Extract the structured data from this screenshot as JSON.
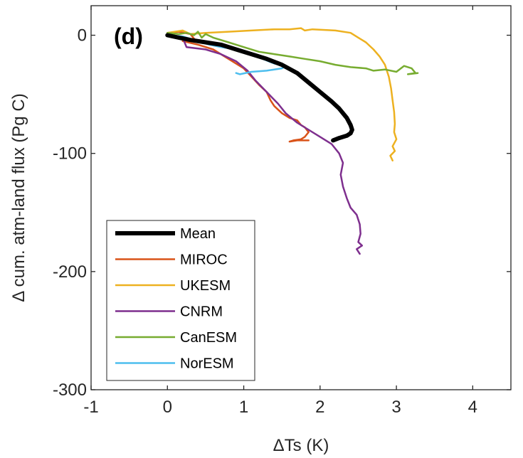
{
  "chart_data": {
    "type": "line",
    "panel_label": "(d)",
    "xlabel": "ΔTs (K)",
    "ylabel": "Δ cum. atm-land flux (Pg C)",
    "xlim": [
      -1,
      4.5
    ],
    "ylim": [
      -300,
      25
    ],
    "xticks": [
      -1,
      0,
      1,
      2,
      3,
      4
    ],
    "xtick_labels": [
      "-1",
      "0",
      "1",
      "2",
      "3",
      "4"
    ],
    "yticks": [
      0,
      -100,
      -200,
      -300
    ],
    "ytick_labels": [
      "0",
      "-100",
      "-200",
      "-300"
    ],
    "grid": false,
    "legend_position": "bottom-left",
    "series": [
      {
        "name": "Mean",
        "color": "#000000",
        "width": 6,
        "points": [
          [
            0.0,
            0
          ],
          [
            0.15,
            -2
          ],
          [
            0.3,
            -4
          ],
          [
            0.5,
            -6
          ],
          [
            0.7,
            -8
          ],
          [
            0.9,
            -12
          ],
          [
            1.1,
            -16
          ],
          [
            1.3,
            -20
          ],
          [
            1.5,
            -25
          ],
          [
            1.7,
            -32
          ],
          [
            1.85,
            -40
          ],
          [
            2.0,
            -48
          ],
          [
            2.15,
            -56
          ],
          [
            2.25,
            -62
          ],
          [
            2.35,
            -70
          ],
          [
            2.4,
            -76
          ],
          [
            2.42,
            -80
          ],
          [
            2.4,
            -83
          ],
          [
            2.35,
            -85
          ],
          [
            2.25,
            -87
          ],
          [
            2.17,
            -89
          ]
        ]
      },
      {
        "name": "MIROC",
        "color": "#D95319",
        "width": 2.5,
        "points": [
          [
            0.0,
            2
          ],
          [
            0.15,
            3
          ],
          [
            0.3,
            1
          ],
          [
            0.35,
            -3
          ],
          [
            0.2,
            -5
          ],
          [
            0.4,
            -8
          ],
          [
            0.6,
            -12
          ],
          [
            0.8,
            -20
          ],
          [
            1.0,
            -28
          ],
          [
            1.1,
            -35
          ],
          [
            1.2,
            -42
          ],
          [
            1.3,
            -48
          ],
          [
            1.35,
            -55
          ],
          [
            1.4,
            -60
          ],
          [
            1.5,
            -66
          ],
          [
            1.6,
            -70
          ],
          [
            1.7,
            -72
          ],
          [
            1.75,
            -76
          ],
          [
            1.8,
            -78
          ],
          [
            1.85,
            -82
          ],
          [
            1.8,
            -86
          ],
          [
            1.75,
            -88
          ],
          [
            1.65,
            -89
          ],
          [
            1.6,
            -90
          ],
          [
            1.7,
            -89
          ],
          [
            1.85,
            -89
          ]
        ]
      },
      {
        "name": "UKESM",
        "color": "#EDB120",
        "width": 2.5,
        "points": [
          [
            0.0,
            2
          ],
          [
            0.2,
            4
          ],
          [
            0.3,
            1
          ],
          [
            0.5,
            2
          ],
          [
            0.8,
            3
          ],
          [
            1.1,
            4
          ],
          [
            1.4,
            5
          ],
          [
            1.6,
            5
          ],
          [
            1.75,
            6
          ],
          [
            1.8,
            4
          ],
          [
            1.9,
            5
          ],
          [
            2.2,
            4
          ],
          [
            2.4,
            2
          ],
          [
            2.5,
            -2
          ],
          [
            2.6,
            -6
          ],
          [
            2.7,
            -12
          ],
          [
            2.78,
            -18
          ],
          [
            2.85,
            -25
          ],
          [
            2.9,
            -35
          ],
          [
            2.93,
            -45
          ],
          [
            2.95,
            -55
          ],
          [
            2.97,
            -65
          ],
          [
            2.98,
            -75
          ],
          [
            2.97,
            -82
          ],
          [
            3.0,
            -88
          ],
          [
            2.95,
            -94
          ],
          [
            2.98,
            -98
          ],
          [
            2.92,
            -102
          ],
          [
            2.95,
            -106
          ]
        ]
      },
      {
        "name": "CNRM",
        "color": "#7E2F8E",
        "width": 2.5,
        "points": [
          [
            0.0,
            1
          ],
          [
            0.2,
            -2
          ],
          [
            0.25,
            -10
          ],
          [
            0.5,
            -12
          ],
          [
            0.7,
            -16
          ],
          [
            0.9,
            -22
          ],
          [
            1.05,
            -30
          ],
          [
            1.15,
            -38
          ],
          [
            1.3,
            -48
          ],
          [
            1.45,
            -58
          ],
          [
            1.55,
            -66
          ],
          [
            1.7,
            -74
          ],
          [
            1.85,
            -80
          ],
          [
            2.0,
            -86
          ],
          [
            2.15,
            -92
          ],
          [
            2.25,
            -100
          ],
          [
            2.3,
            -108
          ],
          [
            2.27,
            -118
          ],
          [
            2.3,
            -128
          ],
          [
            2.35,
            -138
          ],
          [
            2.4,
            -146
          ],
          [
            2.48,
            -152
          ],
          [
            2.52,
            -160
          ],
          [
            2.53,
            -168
          ],
          [
            2.5,
            -175
          ],
          [
            2.55,
            -178
          ],
          [
            2.48,
            -181
          ],
          [
            2.52,
            -185
          ]
        ]
      },
      {
        "name": "CanESM",
        "color": "#77AC30",
        "width": 2.5,
        "points": [
          [
            0.0,
            2
          ],
          [
            0.15,
            1
          ],
          [
            0.25,
            2
          ],
          [
            0.35,
            0
          ],
          [
            0.4,
            3
          ],
          [
            0.45,
            -2
          ],
          [
            0.5,
            1
          ],
          [
            0.6,
            -2
          ],
          [
            0.8,
            -6
          ],
          [
            1.0,
            -10
          ],
          [
            1.2,
            -14
          ],
          [
            1.4,
            -16
          ],
          [
            1.6,
            -18
          ],
          [
            1.8,
            -20
          ],
          [
            2.0,
            -22
          ],
          [
            2.2,
            -25
          ],
          [
            2.4,
            -27
          ],
          [
            2.6,
            -28
          ],
          [
            2.7,
            -30
          ],
          [
            2.85,
            -29
          ],
          [
            3.0,
            -31
          ],
          [
            3.1,
            -26
          ],
          [
            3.2,
            -28
          ],
          [
            3.25,
            -32
          ],
          [
            3.15,
            -33
          ],
          [
            3.28,
            -32
          ]
        ]
      },
      {
        "name": "NorESM",
        "color": "#4DBEEE",
        "width": 2.5,
        "points": [
          [
            0.0,
            0
          ],
          [
            0.2,
            -1
          ],
          [
            0.4,
            -5
          ],
          [
            0.55,
            -8
          ],
          [
            0.7,
            -10
          ],
          [
            0.9,
            -12
          ],
          [
            1.1,
            -15
          ],
          [
            1.25,
            -20
          ],
          [
            1.4,
            -24
          ],
          [
            1.55,
            -26
          ],
          [
            1.5,
            -28
          ],
          [
            1.3,
            -30
          ],
          [
            1.1,
            -31
          ],
          [
            0.95,
            -33
          ],
          [
            0.9,
            -32
          ]
        ]
      }
    ]
  }
}
